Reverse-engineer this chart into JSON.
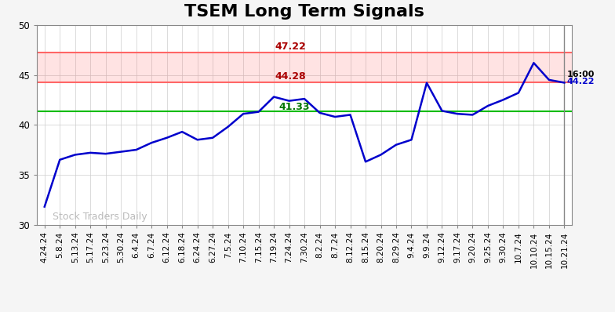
{
  "title": "TSEM Long Term Signals",
  "title_fontsize": 16,
  "title_fontweight": "bold",
  "watermark": "Stock Traders Daily",
  "line_color": "#0000cc",
  "line_width": 1.8,
  "background_color": "#f5f5f5",
  "plot_bg_color": "#ffffff",
  "ylim": [
    30,
    50
  ],
  "yticks": [
    30,
    35,
    40,
    45,
    50
  ],
  "hline_green": 41.33,
  "hline_green_color": "#00bb00",
  "hline_red1": 44.28,
  "hline_red1_color": "#ff6666",
  "hline_red2": 47.22,
  "label_47_22": "47.22",
  "label_44_28": "44.28",
  "label_41_33": "41.33",
  "label_color_red": "#aa0000",
  "label_color_green": "#007700",
  "annotation_time": "16:00",
  "annotation_price": "44.22",
  "annotation_price_color": "#0000cc",
  "grid_color": "#cccccc",
  "grid_alpha": 0.7,
  "spine_color": "#888888",
  "tick_fontsize": 7.5,
  "x_labels": [
    "4.24.24",
    "5.8.24",
    "5.13.24",
    "5.17.24",
    "5.23.24",
    "5.30.24",
    "6.4.24",
    "6.7.24",
    "6.12.24",
    "6.18.24",
    "6.24.24",
    "6.27.24",
    "7.5.24",
    "7.10.24",
    "7.15.24",
    "7.19.24",
    "7.24.24",
    "7.30.24",
    "8.2.24",
    "8.7.24",
    "8.12.24",
    "8.15.24",
    "8.20.24",
    "8.29.24",
    "9.4.24",
    "9.9.24",
    "9.12.24",
    "9.17.24",
    "9.20.24",
    "9.25.24",
    "9.30.24",
    "10.7.24",
    "10.10.24",
    "10.15.24",
    "10.21.24"
  ],
  "prices": [
    31.8,
    36.5,
    37.0,
    37.2,
    37.1,
    37.3,
    37.5,
    38.2,
    38.7,
    39.3,
    38.5,
    38.7,
    39.8,
    41.1,
    41.3,
    42.8,
    42.4,
    42.6,
    41.2,
    40.8,
    41.0,
    36.3,
    37.0,
    38.0,
    38.5,
    44.2,
    41.4,
    41.1,
    41.0,
    41.9,
    42.5,
    43.2,
    46.2,
    44.5,
    44.22
  ]
}
